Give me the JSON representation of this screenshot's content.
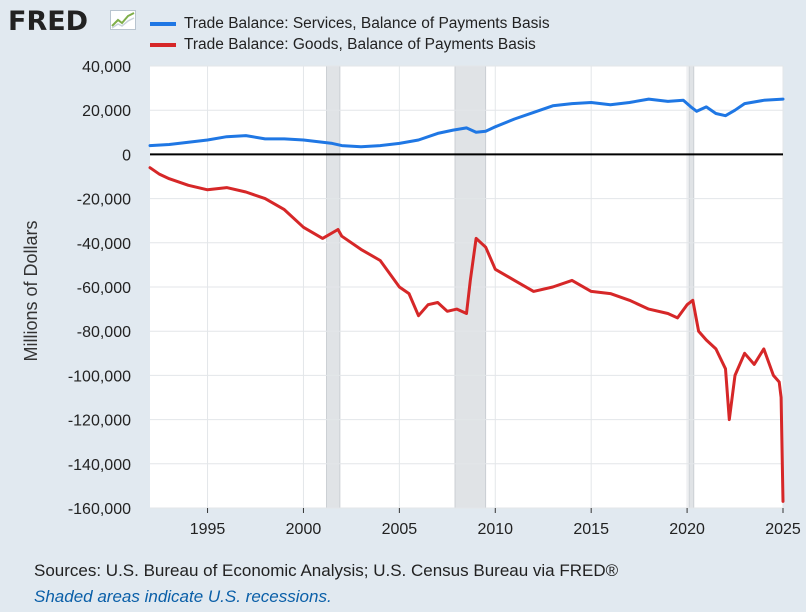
{
  "brand": {
    "logo_text": "FRED",
    "logo_icon": "trend-line-icon"
  },
  "colors": {
    "background": "#e1e9f0",
    "plot_background": "#ffffff",
    "services": "#1f77e4",
    "goods": "#d62728",
    "recession": "#e0e3e6",
    "zero_line": "#000000",
    "link": "#0a5fa8"
  },
  "chart_data": {
    "type": "line",
    "ylabel": "Millions of Dollars",
    "xlim": [
      1992.0,
      2025.0
    ],
    "ylim": [
      -160000,
      40000
    ],
    "yticks": [
      40000,
      20000,
      0,
      -20000,
      -40000,
      -60000,
      -80000,
      -100000,
      -120000,
      -140000,
      -160000
    ],
    "ytick_labels": [
      "40,000",
      "20,000",
      "0",
      "-20,000",
      "-40,000",
      "-60,000",
      "-80,000",
      "-100,000",
      "-120,000",
      "-140,000",
      "-160,000"
    ],
    "xticks": [
      1995,
      2000,
      2005,
      2010,
      2015,
      2020,
      2025
    ],
    "xtick_labels": [
      "1995",
      "2000",
      "2005",
      "2010",
      "2015",
      "2020",
      "2025"
    ],
    "grid": true,
    "legend_position": "top",
    "recessions": [
      {
        "start": 2001.2,
        "end": 2001.9
      },
      {
        "start": 2007.9,
        "end": 2009.5
      },
      {
        "start": 2020.1,
        "end": 2020.35
      }
    ],
    "series": [
      {
        "name": "Trade Balance: Services, Balance of Payments Basis",
        "x": [
          1992.0,
          1993.0,
          1994.0,
          1995.0,
          1996.0,
          1997.0,
          1998.0,
          1999.0,
          2000.0,
          2001.0,
          2001.5,
          2002.0,
          2003.0,
          2004.0,
          2005.0,
          2006.0,
          2007.0,
          2007.8,
          2008.5,
          2009.0,
          2009.5,
          2010.0,
          2011.0,
          2012.0,
          2013.0,
          2014.0,
          2015.0,
          2016.0,
          2017.0,
          2018.0,
          2019.0,
          2019.8,
          2020.2,
          2020.5,
          2021.0,
          2021.5,
          2022.0,
          2022.5,
          2023.0,
          2024.0,
          2025.0
        ],
        "y": [
          4000,
          4500,
          5500,
          6500,
          8000,
          8500,
          7000,
          7000,
          6500,
          5500,
          5000,
          4000,
          3500,
          4000,
          5000,
          6500,
          9500,
          11000,
          12000,
          10000,
          10500,
          12500,
          16000,
          19000,
          22000,
          23000,
          23500,
          22500,
          23500,
          25000,
          24000,
          24500,
          21500,
          19500,
          21500,
          18500,
          17500,
          20000,
          23000,
          24500,
          25000
        ]
      },
      {
        "name": "Trade Balance: Goods, Balance of Payments Basis",
        "x": [
          1992.0,
          1992.5,
          1993.0,
          1994.0,
          1995.0,
          1996.0,
          1997.0,
          1998.0,
          1999.0,
          2000.0,
          2001.0,
          2001.8,
          2002.0,
          2003.0,
          2004.0,
          2005.0,
          2005.5,
          2006.0,
          2006.5,
          2007.0,
          2007.5,
          2008.0,
          2008.5,
          2008.7,
          2009.0,
          2009.5,
          2010.0,
          2011.0,
          2012.0,
          2013.0,
          2014.0,
          2015.0,
          2016.0,
          2017.0,
          2018.0,
          2019.0,
          2019.5,
          2020.0,
          2020.3,
          2020.6,
          2021.0,
          2021.5,
          2022.0,
          2022.2,
          2022.5,
          2023.0,
          2023.5,
          2024.0,
          2024.5,
          2024.8,
          2024.9,
          2025.0
        ],
        "y": [
          -6000,
          -9000,
          -11000,
          -14000,
          -16000,
          -15000,
          -17000,
          -20000,
          -25000,
          -33000,
          -38000,
          -34000,
          -37000,
          -43000,
          -48000,
          -60000,
          -63000,
          -73000,
          -68000,
          -67000,
          -71000,
          -70000,
          -72000,
          -57000,
          -38000,
          -42000,
          -52000,
          -57000,
          -62000,
          -60000,
          -57000,
          -62000,
          -63000,
          -66000,
          -70000,
          -72000,
          -74000,
          -68000,
          -66000,
          -80000,
          -84000,
          -88000,
          -97000,
          -120000,
          -100000,
          -90000,
          -95000,
          -88000,
          -100000,
          -103000,
          -110000,
          -157000
        ]
      }
    ]
  },
  "footer": {
    "sources": "Sources: U.S. Bureau of Economic Analysis; U.S. Census Bureau via FRED®",
    "recession_note": "Shaded areas indicate U.S. recessions."
  }
}
